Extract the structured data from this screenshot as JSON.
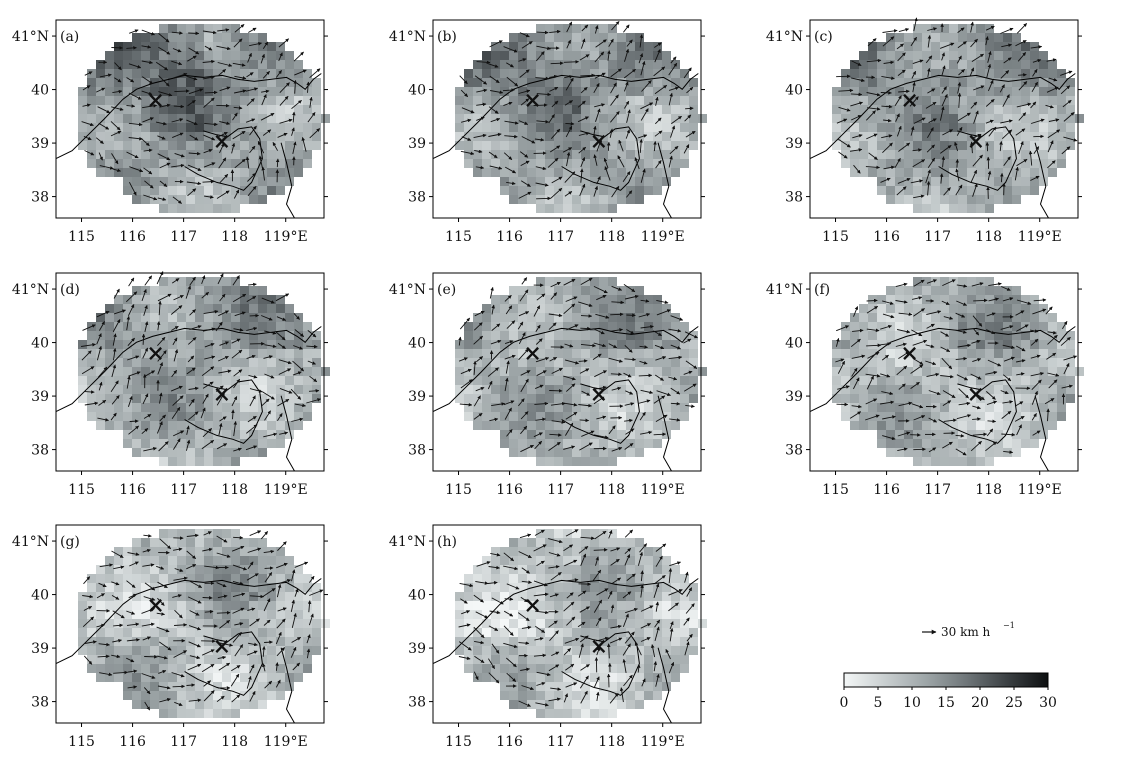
{
  "figure": {
    "longitude_ticks": [
      115,
      116,
      117,
      118,
      119
    ],
    "longitude_tick_labels": [
      "115",
      "116",
      "117",
      "118",
      "119°E"
    ],
    "latitude_ticks": [
      41,
      40,
      39,
      38
    ],
    "latitude_tick_labels": [
      "41°N",
      "40",
      "39",
      "38"
    ],
    "map_extent": {
      "lon": [
        114.5,
        119.75
      ],
      "lat": [
        37.6,
        41.3
      ]
    },
    "station_marker": "×",
    "station_lonlat": [
      [
        116.45,
        39.8
      ],
      [
        117.75,
        39.03
      ]
    ],
    "panels": [
      {
        "label": "(a)"
      },
      {
        "label": "(b)"
      },
      {
        "label": "(c)"
      },
      {
        "label": "(d)"
      },
      {
        "label": "(e)"
      },
      {
        "label": "(f)"
      },
      {
        "label": "(g)"
      },
      {
        "label": "(h)"
      }
    ]
  },
  "legend": {
    "reference_vector_label": "30 km h",
    "reference_vector_exponent": "−1",
    "colorbar_ticks": [
      "0",
      "5",
      "10",
      "15",
      "20",
      "25",
      "30"
    ],
    "colorbar_range": [
      0,
      30
    ],
    "colorbar_colors": [
      "#f4f7f7",
      "#c9cfd0",
      "#9ea6a8",
      "#6f7679",
      "#3b4043",
      "#0d0f10"
    ]
  }
}
